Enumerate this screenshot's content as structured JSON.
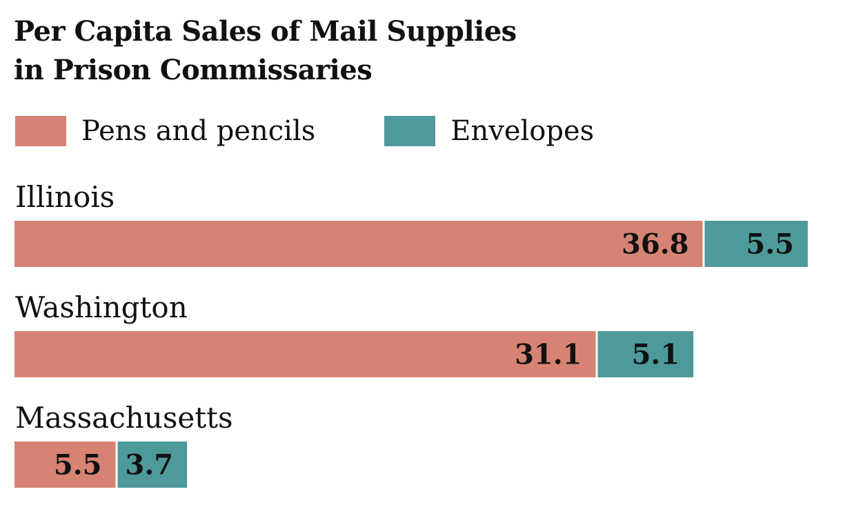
{
  "chart_data": {
    "type": "bar",
    "orientation": "horizontal",
    "stacked": true,
    "title_lines": [
      "Per Capita Sales of Mail Supplies",
      "in Prison Commissaries"
    ],
    "categories": [
      "Illinois",
      "Washington",
      "Massachusetts"
    ],
    "series": [
      {
        "name": "Pens and pencils",
        "color": "#d68373",
        "values": [
          36.8,
          31.1,
          5.5
        ]
      },
      {
        "name": "Envelopes",
        "color": "#4e9a9a",
        "values": [
          5.5,
          5.1,
          3.7
        ]
      }
    ],
    "value_labels": [
      [
        "36.8",
        "31.1",
        "5.5"
      ],
      [
        "5.5",
        "5.1",
        "3.7"
      ]
    ],
    "xlim": [
      0,
      42.3
    ],
    "legend_position": "top-left",
    "grid": false
  }
}
